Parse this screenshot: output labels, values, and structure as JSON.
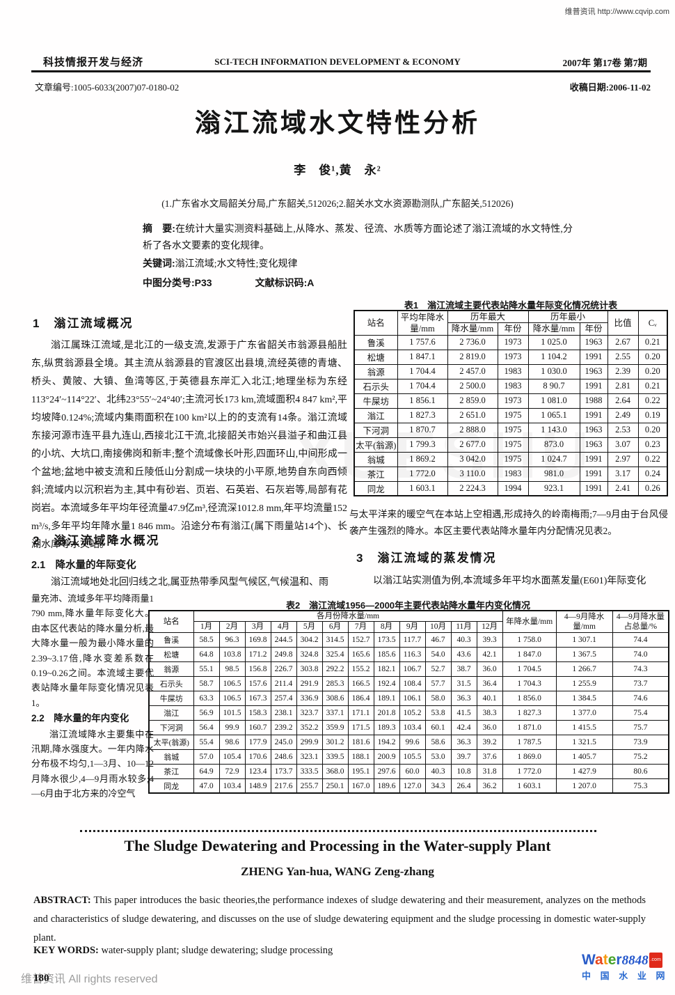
{
  "page": {
    "top_watermark": "维普资讯 http://www.cqvip.com",
    "scan_watermark": "XUESHU",
    "footer_watermark": "维普资讯 All rights reserved",
    "page_number": "180"
  },
  "journal": {
    "name_cn": "科技情报开发与经济",
    "name_en": "SCI-TECH INFORMATION DEVELOPMENT & ECONOMY",
    "issue": "2007年  第17卷  第7期",
    "article_no": "文章编号:1005-6033(2007)07-0180-02",
    "received_date": "收稿日期:2006-11-02"
  },
  "article": {
    "title": "滃江流域水文特性分析",
    "authors": "李　俊¹,黄　永²",
    "affiliation": "(1.广东省水文局韶关分局,广东韶关,512026;2.韶关水文水资源勘测队,广东韶关,512026)",
    "abstract_label": "摘　要:",
    "abstract": "在统计大量实测资料基础上,从降水、蒸发、径流、水质等方面论述了滃江流域的水文特性,分析了各水文要素的变化规律。",
    "keywords_label": "关键词:",
    "keywords": "滃江流域;水文特性;变化规律",
    "clc_label": "中图分类号:P33",
    "doc_code_label": "文献标识码:A"
  },
  "sections": {
    "s1_heading": "1　滃江流域概况",
    "s1_para": "滃江属珠江流域,是北江的一级支流,发源于广东省韶关市翁源县船肚东,纵贯翁源县全境。其主流从翁源县的官渡区出县境,流经英德的青塘、桥头、黄陂、大镇、鱼湾等区,于英德县东岸汇入北江;地理坐标为东经113°24′~114°22′、北纬23°55′~24°40′;主流河长173 km,流域面积4 847 km²,平均坡降0.124%;流域内集雨面积在100 km²以上的的支流有14条。滃江流域东接河源市连平县九连山,西接北江干流,北接韶关市始兴县溢子和曲江县的小坑、大坑口,南接佛岗和新丰;整个流域像长叶形,四面环山,中间形成一个盆地;盆地中被支流和丘陵低山分割成一块块的小平原,地势自东向西倾斜;流域内以沉积岩为主,其中有砂岩、页岩、石英岩、石灰岩等,局部有花岗岩。本流域多年平均年径流量47.9亿m³,径流深1012.8 mm,年平均流量152 m³/s,多年平均年降水量1 846 mm。沿途分布有滃江(属下雨量站14个)、长湖水库等水文站。",
    "s2_heading": "2　滃江流域降水概况",
    "s21_heading": "2.1　降水量的年际变化",
    "s21_para_wide": "滃江流域地处北回归线之北,属亚热带季风型气候区,气候温和、雨",
    "s21_para_narrow": "量充沛、流域多年平均降雨量1 790 mm,降水量年际变化大。由本区代表站的降水量分析,最大降水量一般为最小降水量的2.39~3.17倍,降水变差系数在0.19~0.26之间。本流域主要代表站降水量年际变化情况见表1。",
    "s22_heading": "2.2　降水量的年内变化",
    "s22_para": "滃江流域降水主要集中在汛期,降水强度大。一年内降水分布极不均匀,1—3月、10—12月降水很少,4—9月雨水较多;4—6月由于北方来的冷空气",
    "right_para": "与太平洋来的暖空气在本站上空相遇,形成持久的岭南梅雨;7—9月由于台风侵袭产生强烈的降水。本区主要代表站降水量年内分配情况见表2。",
    "s3_heading": "3　滃江流域的蒸发情况",
    "s3_para": "以滃江站实测值为例,本流域多年平均水面蒸发量(E601)年际变化"
  },
  "table1": {
    "title": "表1　滃江流域主要代表站降水量年际变化情况统计表",
    "headers": {
      "station": "站名",
      "avg_annual": "平均年降水量/mm",
      "max_group": "历年最大",
      "min_group": "历年最小",
      "rain_mm": "降水量/mm",
      "year": "年份",
      "ratio": "比值",
      "cv": "Cᵥ"
    },
    "rows": [
      [
        "鲁溪",
        "1 757.6",
        "2 736.0",
        "1973",
        "1 025.0",
        "1963",
        "2.67",
        "0.21"
      ],
      [
        "松塘",
        "1 847.1",
        "2 819.0",
        "1973",
        "1 104.2",
        "1991",
        "2.55",
        "0.20"
      ],
      [
        "翁源",
        "1 704.4",
        "2 457.0",
        "1983",
        "1 030.0",
        "1963",
        "2.39",
        "0.20"
      ],
      [
        "石示头",
        "1 704.4",
        "2 500.0",
        "1983",
        "8 90.7",
        "1991",
        "2.81",
        "0.21"
      ],
      [
        "牛屎坊",
        "1 856.1",
        "2 859.0",
        "1973",
        "1 081.0",
        "1988",
        "2.64",
        "0.22"
      ],
      [
        "滃江",
        "1 827.3",
        "2 651.0",
        "1975",
        "1 065.1",
        "1991",
        "2.49",
        "0.19"
      ],
      [
        "下河洞",
        "1 870.7",
        "2 888.0",
        "1975",
        "1 143.0",
        "1963",
        "2.53",
        "0.20"
      ],
      [
        "太平(翁源)",
        "1 799.3",
        "2 677.0",
        "1975",
        "873.0",
        "1963",
        "3.07",
        "0.23"
      ],
      [
        "翁城",
        "1 869.2",
        "3 042.0",
        "1975",
        "1 024.7",
        "1991",
        "2.97",
        "0.22"
      ],
      [
        "茶江",
        "1 772.0",
        "3 110.0",
        "1983",
        "981.0",
        "1991",
        "3.17",
        "0.24"
      ],
      [
        "同龙",
        "1 603.1",
        "2 224.3",
        "1994",
        "923.1",
        "1991",
        "2.41",
        "0.26"
      ]
    ]
  },
  "table2": {
    "title": "表2　滃江流域1956—2000年主要代表站降水量年内变化情况",
    "headers": {
      "station": "站名",
      "months_group": "各月份降水量/mm",
      "annual": "年降水量/mm",
      "apr_sep": "4—9月降水量/mm",
      "apr_sep_pct": "4—9月降水量占总量/%"
    },
    "month_headers": [
      "1月",
      "2月",
      "3月",
      "4月",
      "5月",
      "6月",
      "7月",
      "8月",
      "9月",
      "10月",
      "11月",
      "12月"
    ],
    "rows": [
      [
        "鲁溪",
        "58.5",
        "96.3",
        "169.8",
        "244.5",
        "304.2",
        "314.5",
        "152.7",
        "173.5",
        "117.7",
        "46.7",
        "40.3",
        "39.3",
        "1 758.0",
        "1 307.1",
        "74.4"
      ],
      [
        "松塘",
        "64.8",
        "103.8",
        "171.2",
        "249.8",
        "324.8",
        "325.4",
        "165.6",
        "185.6",
        "116.3",
        "54.0",
        "43.6",
        "42.1",
        "1 847.0",
        "1 367.5",
        "74.0"
      ],
      [
        "翁源",
        "55.1",
        "98.5",
        "156.8",
        "226.7",
        "303.8",
        "292.2",
        "155.2",
        "182.1",
        "106.7",
        "52.7",
        "38.7",
        "36.0",
        "1 704.5",
        "1 266.7",
        "74.3"
      ],
      [
        "石示头",
        "58.7",
        "106.5",
        "157.6",
        "211.4",
        "291.9",
        "285.3",
        "166.5",
        "192.4",
        "108.4",
        "57.7",
        "31.5",
        "36.4",
        "1 704.3",
        "1 255.9",
        "73.7"
      ],
      [
        "牛屎坊",
        "63.3",
        "106.5",
        "167.3",
        "257.4",
        "336.9",
        "308.6",
        "186.4",
        "189.1",
        "106.1",
        "58.0",
        "36.3",
        "40.1",
        "1 856.0",
        "1 384.5",
        "74.6"
      ],
      [
        "滃江",
        "56.9",
        "101.5",
        "158.3",
        "238.1",
        "323.7",
        "337.1",
        "171.1",
        "201.8",
        "105.2",
        "53.8",
        "41.5",
        "38.3",
        "1 827.3",
        "1 377.0",
        "75.4"
      ],
      [
        "下河洞",
        "56.4",
        "99.9",
        "160.7",
        "239.2",
        "352.2",
        "359.9",
        "171.5",
        "189.3",
        "103.4",
        "60.1",
        "42.4",
        "36.0",
        "1 871.0",
        "1 415.5",
        "75.7"
      ],
      [
        "太平(翁源)",
        "55.4",
        "98.6",
        "177.9",
        "245.0",
        "299.9",
        "301.2",
        "181.6",
        "194.2",
        "99.6",
        "58.6",
        "36.3",
        "39.2",
        "1 787.5",
        "1 321.5",
        "73.9"
      ],
      [
        "翁城",
        "57.0",
        "105.4",
        "170.6",
        "248.6",
        "323.1",
        "339.5",
        "188.1",
        "200.9",
        "105.5",
        "53.0",
        "39.7",
        "37.6",
        "1 869.0",
        "1 405.7",
        "75.2"
      ],
      [
        "茶江",
        "64.9",
        "72.9",
        "123.4",
        "173.7",
        "333.5",
        "368.0",
        "195.1",
        "297.6",
        "60.0",
        "40.3",
        "10.8",
        "31.8",
        "1 772.0",
        "1 427.9",
        "80.6"
      ],
      [
        "同龙",
        "47.0",
        "103.4",
        "148.9",
        "217.6",
        "255.7",
        "250.1",
        "167.0",
        "189.6",
        "127.0",
        "34.3",
        "26.4",
        "36.2",
        "1 603.1",
        "1 207.0",
        "75.3"
      ]
    ]
  },
  "english": {
    "title": "The Sludge Dewatering and Processing in the Water-supply Plant",
    "authors": "ZHENG Yan-hua, WANG Zeng-zhang",
    "abstract_label": "ABSTRACT:",
    "abstract": "This paper introduces the basic theories,the performance indexes of sludge dewatering and their measurement, analyzes on the methods and characteristics of sludge dewatering, and discusses on the use of sludge dewatering equipment and the sludge processing in domestic water-supply plant.",
    "keywords_label": "KEY WORDS:",
    "keywords": "water-supply plant; sludge dewatering; sludge processing"
  },
  "logo": {
    "letters": [
      {
        "ch": "W",
        "color": "#2a5cc8"
      },
      {
        "ch": "a",
        "color": "#e8481c"
      },
      {
        "ch": "t",
        "color": "#f59a10"
      },
      {
        "ch": "e",
        "color": "#46a32a"
      },
      {
        "ch": "r",
        "color": "#2a5cc8"
      }
    ],
    "number": "8848",
    "number_color": "#2255cc",
    "dotcom": ".com",
    "site_name": "中 国 水 业 网",
    "site_color": "#2b6bd0"
  }
}
